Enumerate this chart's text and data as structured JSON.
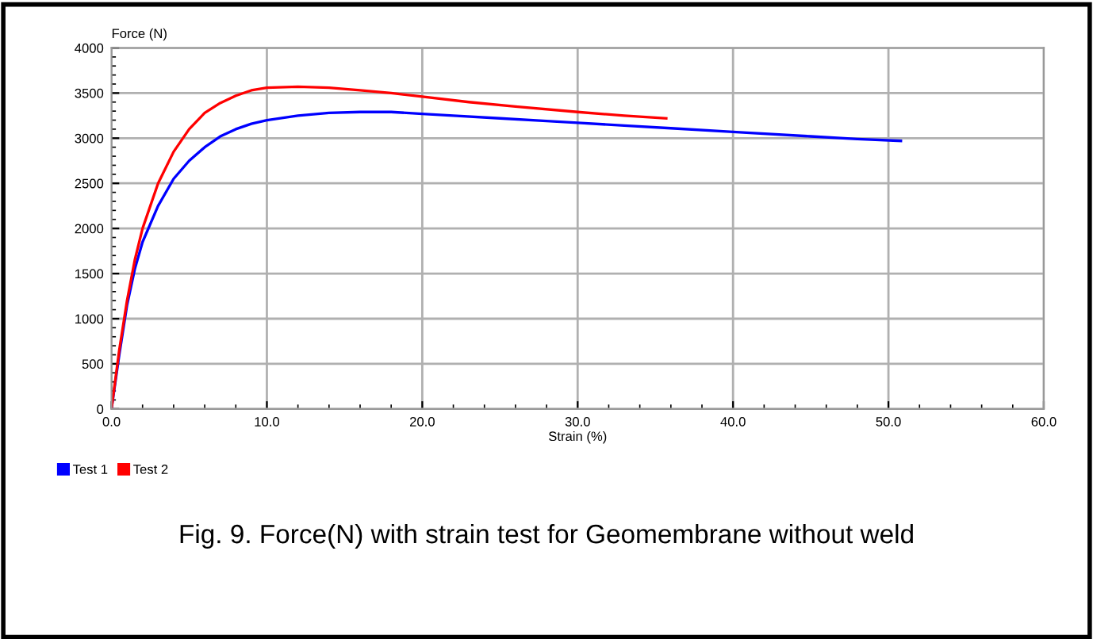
{
  "chart_data": {
    "type": "line",
    "ylabel": "Force (N)",
    "xlabel": "Strain (%)",
    "annotations": [
      "Fig. 9. Force(N) with strain test for Geomembrane without weld"
    ],
    "xlim": [
      0,
      60
    ],
    "ylim": [
      0,
      4000
    ],
    "xticks": [
      {
        "value": 0,
        "label": "0.0"
      },
      {
        "value": 10,
        "label": "10.0"
      },
      {
        "value": 20,
        "label": "20.0"
      },
      {
        "value": 30,
        "label": "30.0"
      },
      {
        "value": 40,
        "label": "40.0"
      },
      {
        "value": 50,
        "label": "50.0"
      },
      {
        "value": 60,
        "label": "60.0"
      }
    ],
    "yticks": [
      0,
      500,
      1000,
      1500,
      2000,
      2500,
      3000,
      3500,
      4000
    ],
    "grid": true,
    "legend": "bottom left",
    "marker": "none",
    "line_style": "solid",
    "series": [
      {
        "name": "Test 1",
        "color": "#0000ff",
        "x": [
          0,
          0.5,
          1,
          1.5,
          2,
          3,
          4,
          5,
          6,
          7,
          8,
          9,
          10,
          12,
          14,
          16,
          18,
          20,
          22,
          25,
          28,
          30,
          33,
          36,
          40,
          45,
          48,
          50.8
        ],
        "values": [
          0,
          600,
          1150,
          1550,
          1850,
          2250,
          2550,
          2750,
          2900,
          3020,
          3100,
          3160,
          3200,
          3250,
          3280,
          3290,
          3290,
          3270,
          3250,
          3220,
          3190,
          3170,
          3140,
          3110,
          3070,
          3020,
          2990,
          2970
        ]
      },
      {
        "name": "Test 2",
        "color": "#ff0000",
        "x": [
          0,
          0.5,
          1,
          1.5,
          2,
          3,
          4,
          5,
          6,
          7,
          8,
          9,
          10,
          12,
          14,
          16,
          18,
          20,
          23,
          26,
          30,
          33,
          35.7
        ],
        "values": [
          0,
          650,
          1200,
          1650,
          2000,
          2500,
          2850,
          3100,
          3280,
          3390,
          3470,
          3530,
          3560,
          3570,
          3560,
          3530,
          3500,
          3460,
          3400,
          3350,
          3290,
          3250,
          3220
        ]
      }
    ]
  }
}
